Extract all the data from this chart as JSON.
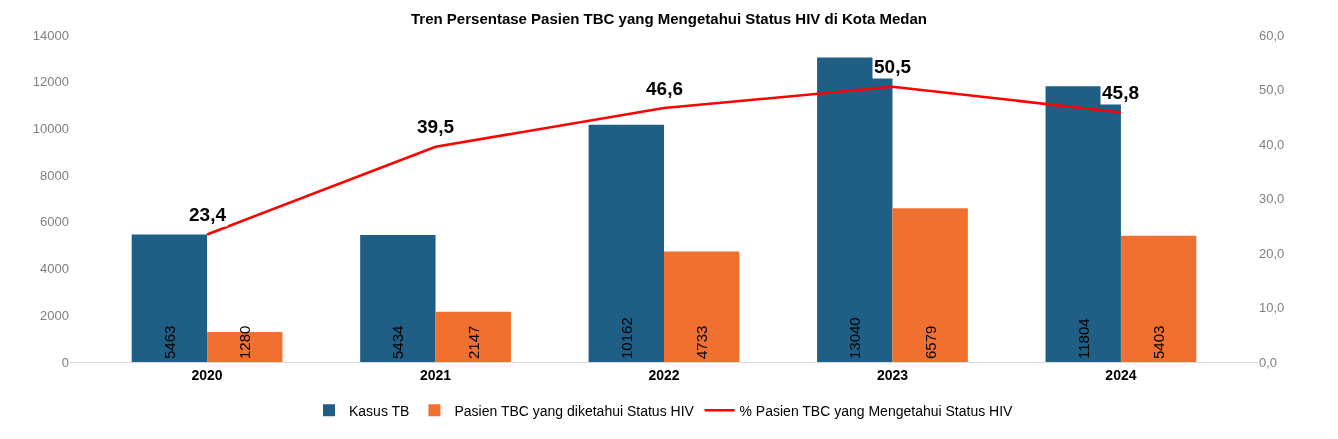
{
  "chart_data": {
    "type": "bar",
    "title": "Tren Persentase Pasien TBC yang Mengetahui Status HIV di Kota Medan",
    "categories": [
      "2020",
      "2021",
      "2022",
      "2023",
      "2024"
    ],
    "series": [
      {
        "name": "Kasus TB",
        "color": "#1f5f86",
        "values": [
          5463,
          5434,
          10162,
          13040,
          11804
        ],
        "value_labels": [
          "5463",
          "5434",
          "10162",
          "13040",
          "11804"
        ]
      },
      {
        "name": "Pasien TBC yang diketahui Status HIV",
        "color": "#f07030",
        "values": [
          1280,
          2147,
          4733,
          6579,
          5403
        ],
        "value_labels": [
          "1280",
          "2147",
          "4733",
          "6579",
          "5403"
        ]
      },
      {
        "name": "% Pasien TBC yang Mengetahui Status HIV",
        "type": "line",
        "axis": "y2",
        "color": "#ff0000",
        "values": [
          23.4,
          39.5,
          46.6,
          50.5,
          45.8
        ],
        "value_labels": [
          "23,4",
          "39,5",
          "46,6",
          "50,5",
          "45,8"
        ]
      }
    ],
    "ylim": [
      0,
      14000
    ],
    "yticks": [
      0,
      2000,
      4000,
      6000,
      8000,
      10000,
      12000,
      14000
    ],
    "y2lim": [
      0,
      60
    ],
    "y2ticks": [
      {
        "value": 0,
        "label": "0,0"
      },
      {
        "value": 10,
        "label": "10,0"
      },
      {
        "value": 20,
        "label": "20,0"
      },
      {
        "value": 30,
        "label": "30,0"
      },
      {
        "value": 40,
        "label": "40,0"
      },
      {
        "value": 50,
        "label": "50,0"
      },
      {
        "value": 60,
        "label": "60,0"
      }
    ],
    "legend": "bottom",
    "marker": "none"
  }
}
